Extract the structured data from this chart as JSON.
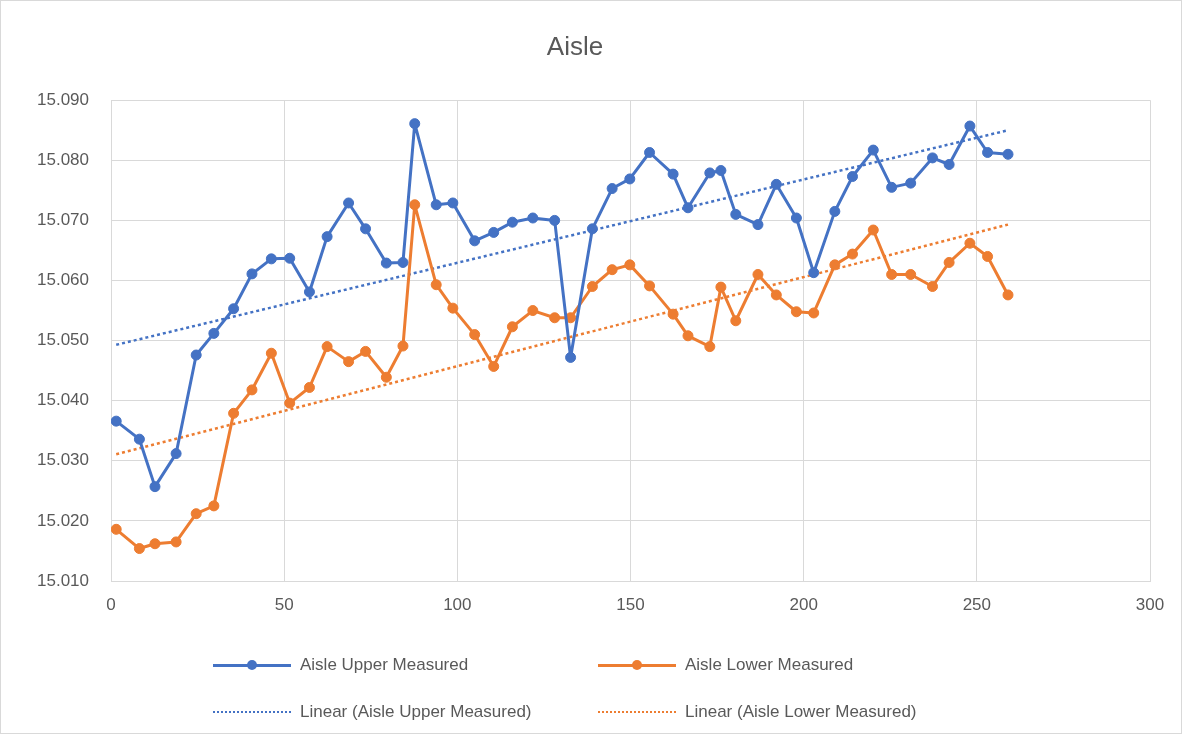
{
  "chart_data": {
    "type": "line",
    "title": "Aisle",
    "x": [
      1.5,
      8.2,
      12.7,
      18.8,
      24.6,
      29.7,
      35.4,
      40.7,
      46.3,
      51.6,
      57.3,
      62.4,
      68.6,
      73.5,
      79.5,
      84.3,
      87.7,
      93.9,
      98.7,
      105,
      110.5,
      115.9,
      121.8,
      128.1,
      132.7,
      139,
      144.7,
      149.8,
      155.5,
      162.3,
      166.6,
      172.9,
      176.1,
      180.4,
      186.8,
      192.1,
      197.9,
      202.9,
      209,
      214.1,
      220.1,
      225.4,
      230.9,
      237.2,
      242,
      248,
      253.1,
      259
    ],
    "xlim": [
      0,
      300
    ],
    "xticks": [
      0,
      50,
      100,
      150,
      200,
      250,
      300
    ],
    "ylim": [
      15.01,
      15.09
    ],
    "yticks": [
      {
        "value": 15.01,
        "label": "15.010"
      },
      {
        "value": 15.02,
        "label": "15.020"
      },
      {
        "value": 15.03,
        "label": "15.030"
      },
      {
        "value": 15.04,
        "label": "15.040"
      },
      {
        "value": 15.05,
        "label": "15.050"
      },
      {
        "value": 15.06,
        "label": "15.060"
      },
      {
        "value": 15.07,
        "label": "15.070"
      },
      {
        "value": 15.08,
        "label": "15.080"
      },
      {
        "value": 15.09,
        "label": "15.090"
      }
    ],
    "grid": true,
    "legend": "bottom",
    "marker": "circle",
    "series": [
      {
        "name": "Aisle Upper Measured",
        "color": "#4472c4",
        "values": [
          15.0366,
          15.0336,
          15.0257,
          15.0312,
          15.0476,
          15.0512,
          15.0553,
          15.0611,
          15.0636,
          15.0637,
          15.0581,
          15.0673,
          15.0729,
          15.0686,
          15.0629,
          15.063,
          15.0861,
          15.0726,
          15.0729,
          15.0666,
          15.068,
          15.0697,
          15.0704,
          15.07,
          15.0472,
          15.0686,
          15.0753,
          15.0769,
          15.0813,
          15.0777,
          15.0721,
          15.0779,
          15.0783,
          15.071,
          15.0693,
          15.076,
          15.0704,
          15.0613,
          15.0715,
          15.0773,
          15.0817,
          15.0755,
          15.0762,
          15.0804,
          15.0793,
          15.0857,
          15.0813,
          15.081
        ]
      },
      {
        "name": "Aisle Lower Measured",
        "color": "#ed7d31",
        "values": [
          15.0186,
          15.0154,
          15.0162,
          15.0165,
          15.0212,
          15.0225,
          15.0379,
          15.0418,
          15.0479,
          15.0396,
          15.0422,
          15.049,
          15.0465,
          15.0482,
          15.0439,
          15.0491,
          15.0726,
          15.0593,
          15.0554,
          15.051,
          15.0457,
          15.0523,
          15.055,
          15.0538,
          15.0538,
          15.059,
          15.0618,
          15.0626,
          15.0591,
          15.0544,
          15.0508,
          15.049,
          15.0589,
          15.0533,
          15.061,
          15.0576,
          15.0548,
          15.0546,
          15.0626,
          15.0644,
          15.0684,
          15.061,
          15.061,
          15.059,
          15.063,
          15.0662,
          15.064,
          15.0576
        ]
      },
      {
        "name": "Linear (Aisle Upper Measured)",
        "color": "#4472c4",
        "type": "line",
        "x": [
          1.5,
          130,
          259
        ],
        "values": [
          15.0493,
          15.0671,
          15.085
        ],
        "marker": "none",
        "line_style": "dotted"
      },
      {
        "name": "Linear (Aisle Lower Measured)",
        "color": "#ed7d31",
        "type": "line",
        "x": [
          1.5,
          130,
          259
        ],
        "values": [
          15.0311,
          15.0502,
          15.0693
        ],
        "marker": "none",
        "line_style": "dotted"
      }
    ]
  }
}
